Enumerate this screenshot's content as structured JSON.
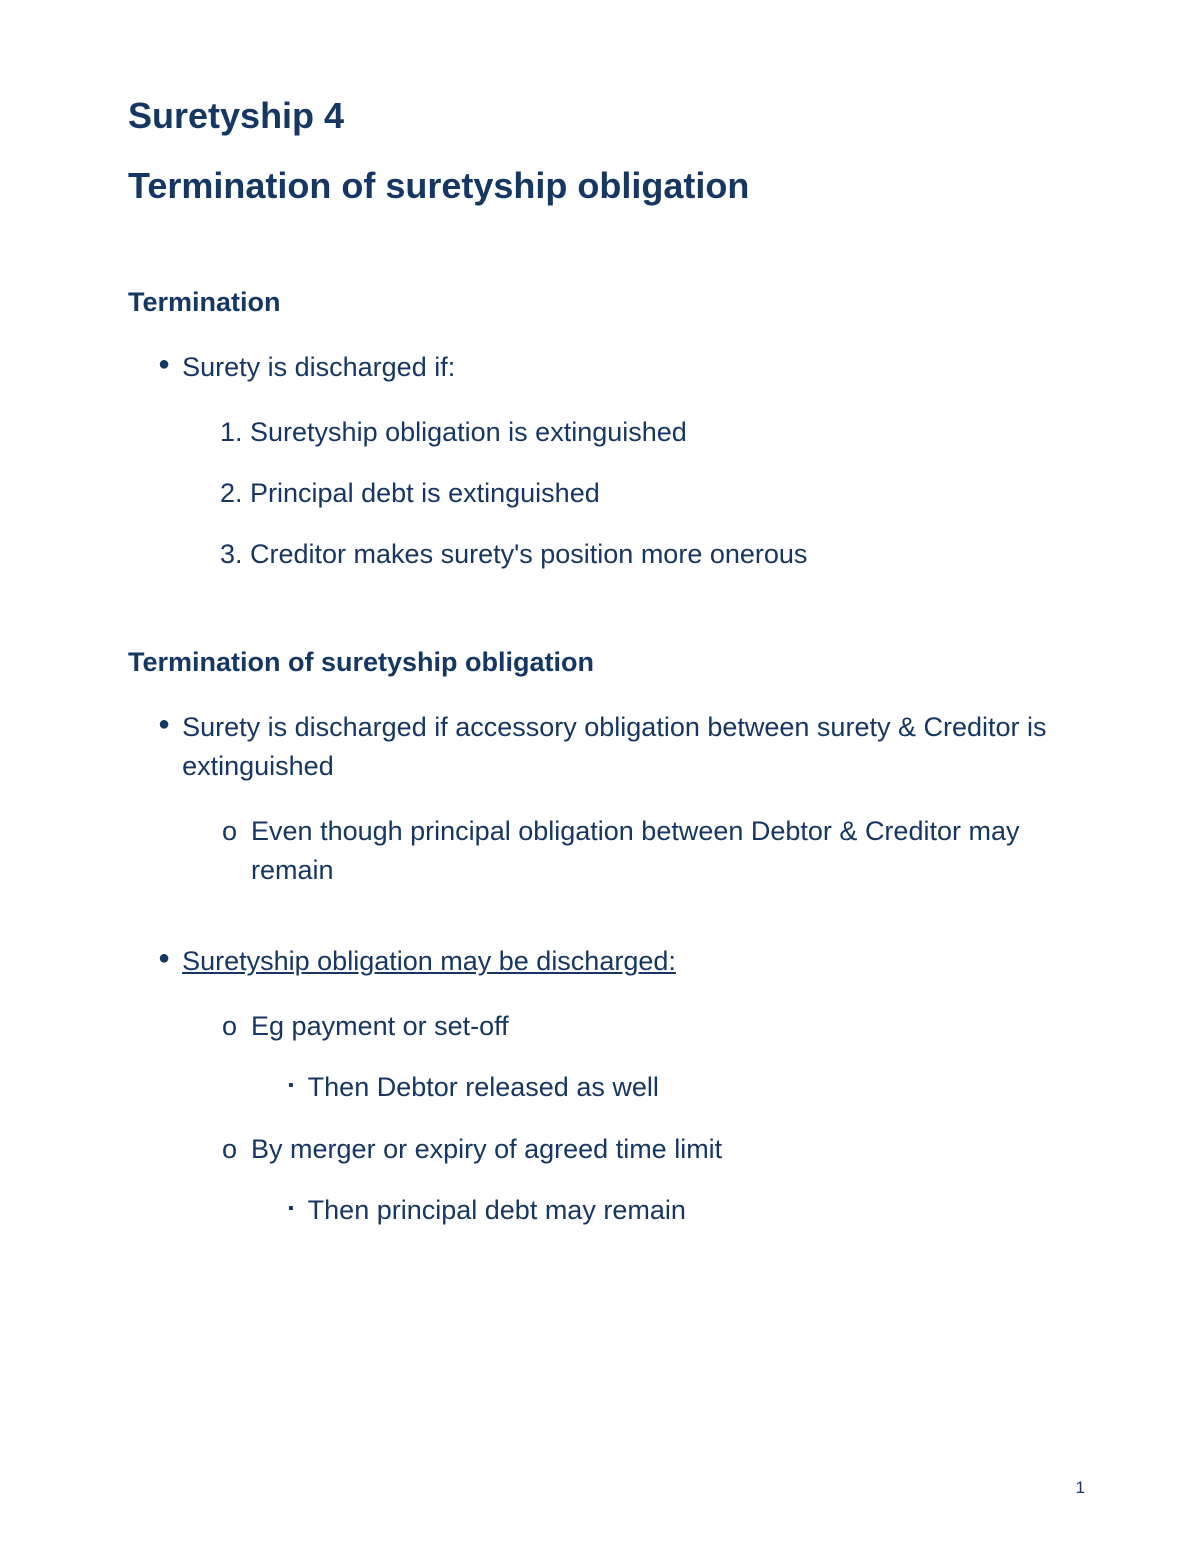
{
  "colors": {
    "text": "#163763",
    "background": "#ffffff"
  },
  "typography": {
    "title_fontsize": 36,
    "heading_fontsize": 27,
    "body_fontsize": 27,
    "page_number_fontsize": 17,
    "font_family": "Arial"
  },
  "title_line1": "Suretyship 4",
  "title_line2": "Termination of suretyship obligation",
  "section1": {
    "heading": "Termination",
    "bullet1": "Surety is discharged if:",
    "num1": "1. Suretyship obligation is extinguished",
    "num2": "2. Principal debt is extinguished",
    "num3": "3. Creditor makes surety's position more onerous"
  },
  "section2": {
    "heading": "Termination of suretyship obligation",
    "bullet1": "Surety is discharged if accessory obligation between surety & Creditor is extinguished",
    "sub1": "Even though principal obligation between Debtor & Creditor may remain",
    "bullet2": "Suretyship obligation may be discharged:",
    "sub2": "Eg payment or set-off",
    "subsub2": "Then Debtor released as well",
    "sub3": "By merger or expiry of agreed time limit",
    "subsub3": "Then principal debt may remain"
  },
  "page_number": "1"
}
